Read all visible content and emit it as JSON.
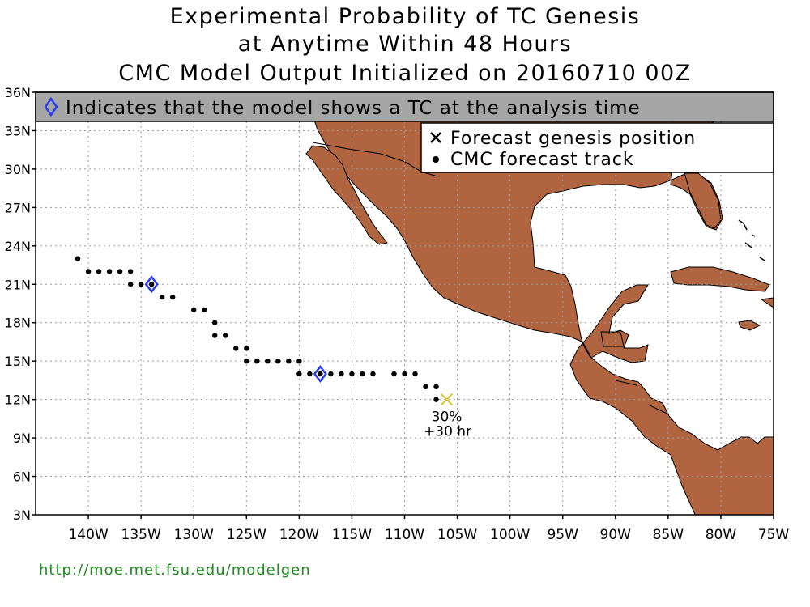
{
  "title": {
    "line1": "Experimental Probability of TC Genesis",
    "line2": "at Anytime Within 48 Hours",
    "line3": "CMC Model Output Initialized on 20160710 00Z"
  },
  "banner": {
    "text": "Indicates that the model shows a TC at the analysis time"
  },
  "legend": {
    "genesis_label": "Forecast genesis position",
    "track_label": "CMC forecast track"
  },
  "map": {
    "lon_range": [
      -145,
      -75
    ],
    "lat_range": [
      3,
      36
    ],
    "lon_ticks": [
      {
        "lon": -140,
        "label": "140W"
      },
      {
        "lon": -135,
        "label": "135W"
      },
      {
        "lon": -130,
        "label": "130W"
      },
      {
        "lon": -125,
        "label": "125W"
      },
      {
        "lon": -120,
        "label": "120W"
      },
      {
        "lon": -115,
        "label": "115W"
      },
      {
        "lon": -110,
        "label": "110W"
      },
      {
        "lon": -105,
        "label": "105W"
      },
      {
        "lon": -100,
        "label": "100W"
      },
      {
        "lon": -95,
        "label": "95W"
      },
      {
        "lon": -90,
        "label": "90W"
      },
      {
        "lon": -85,
        "label": "85W"
      },
      {
        "lon": -80,
        "label": "80W"
      },
      {
        "lon": -75,
        "label": "75W"
      }
    ],
    "lat_ticks": [
      {
        "lat": 3,
        "label": "3N"
      },
      {
        "lat": 6,
        "label": "6N"
      },
      {
        "lat": 9,
        "label": "9N"
      },
      {
        "lat": 12,
        "label": "12N"
      },
      {
        "lat": 15,
        "label": "15N"
      },
      {
        "lat": 18,
        "label": "18N"
      },
      {
        "lat": 21,
        "label": "21N"
      },
      {
        "lat": 24,
        "label": "24N"
      },
      {
        "lat": 27,
        "label": "27N"
      },
      {
        "lat": 30,
        "label": "30N"
      },
      {
        "lat": 33,
        "label": "33N"
      },
      {
        "lat": 36,
        "label": "36N"
      }
    ],
    "grid": true,
    "land_color": "#b0643f",
    "ocean_color": "#ffffff",
    "analysis_diamond_color": "#2a3cf0",
    "genesis_marker_color": "#d8c830"
  },
  "tracks": [
    {
      "points": [
        [
          -141,
          23
        ],
        [
          -140,
          22
        ],
        [
          -139,
          22
        ],
        [
          -138,
          22
        ],
        [
          -137,
          22
        ],
        [
          -136,
          22
        ],
        [
          -136,
          21
        ],
        [
          -135,
          21
        ],
        [
          -134,
          21
        ],
        [
          -133,
          20
        ],
        [
          -132,
          20
        ],
        [
          -130,
          19
        ],
        [
          -129,
          19
        ],
        [
          -128,
          18
        ],
        [
          -128,
          17
        ],
        [
          -127,
          17
        ],
        [
          -126,
          16
        ],
        [
          -125,
          16
        ],
        [
          -125,
          15
        ],
        [
          -124,
          15
        ],
        [
          -123,
          15
        ],
        [
          -122,
          15
        ],
        [
          -121,
          15
        ],
        [
          -120,
          15
        ]
      ]
    },
    {
      "points": [
        [
          -120,
          14
        ],
        [
          -119,
          14
        ],
        [
          -118,
          14
        ],
        [
          -117,
          14
        ],
        [
          -116,
          14
        ],
        [
          -115,
          14
        ],
        [
          -114,
          14
        ],
        [
          -113,
          14
        ],
        [
          -111,
          14
        ],
        [
          -110,
          14
        ],
        [
          -109,
          14
        ],
        [
          -108,
          13
        ],
        [
          -107,
          13
        ],
        [
          -107,
          12
        ]
      ]
    }
  ],
  "analysis_markers": [
    {
      "lon": -134,
      "lat": 21
    },
    {
      "lon": -118,
      "lat": 14
    }
  ],
  "genesis": {
    "lon": -106,
    "lat": 12,
    "probability": "30%",
    "lead_time": "+30 hr"
  },
  "footer": {
    "url": "http://moe.met.fsu.edu/modelgen",
    "url_color": "#1c8c1c"
  }
}
